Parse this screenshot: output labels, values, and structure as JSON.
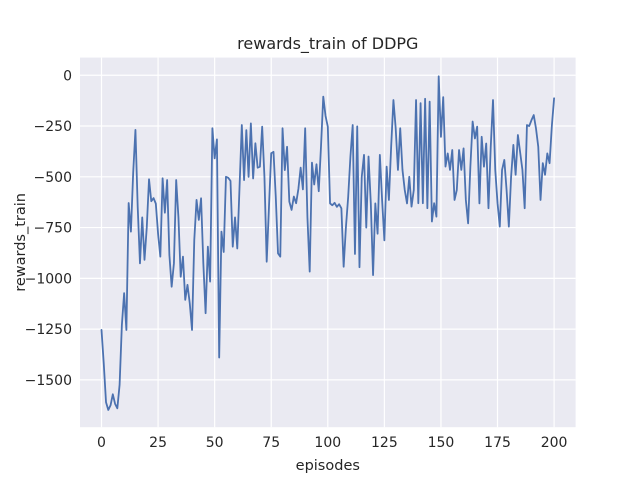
{
  "figure": {
    "kind": "matplotlib-seaborn line plot",
    "background_color": "#ffffff"
  },
  "chart_data": {
    "type": "line",
    "title": "rewards_train of DDPG",
    "xlabel": "episodes",
    "ylabel": "rewards_train",
    "legend": null,
    "grid": true,
    "plot_bg_color": "#eaeaf2",
    "grid_color": "#ffffff",
    "line_color": "#4c72b0",
    "text_color": "#262626",
    "x_ticks": [
      0,
      25,
      50,
      75,
      100,
      125,
      150,
      175,
      200
    ],
    "y_ticks": [
      0,
      -250,
      -500,
      -750,
      -1000,
      -1250,
      -1500
    ],
    "xlim": [
      -9.5,
      209.5
    ],
    "ylim": [
      -1733,
      87
    ],
    "x": [
      0,
      1,
      2,
      3,
      4,
      5,
      6,
      7,
      8,
      9,
      10,
      11,
      12,
      13,
      14,
      15,
      16,
      17,
      18,
      19,
      20,
      21,
      22,
      23,
      24,
      25,
      26,
      27,
      28,
      29,
      30,
      31,
      32,
      33,
      34,
      35,
      36,
      37,
      38,
      39,
      40,
      41,
      42,
      43,
      44,
      45,
      46,
      47,
      48,
      49,
      50,
      51,
      52,
      53,
      54,
      55,
      56,
      57,
      58,
      59,
      60,
      61,
      62,
      63,
      64,
      65,
      66,
      67,
      68,
      69,
      70,
      71,
      72,
      73,
      74,
      75,
      76,
      77,
      78,
      79,
      80,
      81,
      82,
      83,
      84,
      85,
      86,
      87,
      88,
      89,
      90,
      91,
      92,
      93,
      94,
      95,
      96,
      97,
      98,
      99,
      100,
      101,
      102,
      103,
      104,
      105,
      106,
      107,
      108,
      109,
      110,
      111,
      112,
      113,
      114,
      115,
      116,
      117,
      118,
      119,
      120,
      121,
      122,
      123,
      124,
      125,
      126,
      127,
      128,
      129,
      130,
      131,
      132,
      133,
      134,
      135,
      136,
      137,
      138,
      139,
      140,
      141,
      142,
      143,
      144,
      145,
      146,
      147,
      148,
      149,
      150,
      151,
      152,
      153,
      154,
      155,
      156,
      157,
      158,
      159,
      160,
      161,
      162,
      163,
      164,
      165,
      166,
      167,
      168,
      169,
      170,
      171,
      172,
      173,
      174,
      175,
      176,
      177,
      178,
      179,
      180,
      181,
      182,
      183,
      184,
      185,
      186,
      187,
      188,
      189,
      190,
      191,
      192,
      193,
      194,
      195,
      196,
      197,
      198,
      199,
      200
    ],
    "values": [
      -1254,
      -1420,
      -1610,
      -1648,
      -1625,
      -1571,
      -1618,
      -1640,
      -1524,
      -1230,
      -1073,
      -1254,
      -629,
      -770,
      -480,
      -269,
      -650,
      -926,
      -700,
      -909,
      -750,
      -512,
      -620,
      -605,
      -632,
      -780,
      -893,
      -507,
      -677,
      -516,
      -885,
      -1041,
      -926,
      -516,
      -700,
      -992,
      -893,
      -1106,
      -1032,
      -1123,
      -1254,
      -811,
      -614,
      -712,
      -606,
      -926,
      -1172,
      -844,
      -1016,
      -261,
      -409,
      -316,
      -1390,
      -770,
      -870,
      -500,
      -505,
      -520,
      -844,
      -700,
      -853,
      -550,
      -245,
      -516,
      -270,
      -500,
      -237,
      -508,
      -335,
      -455,
      -450,
      -253,
      -500,
      -918,
      -650,
      -384,
      -377,
      -597,
      -877,
      -893,
      -261,
      -467,
      -352,
      -622,
      -663,
      -597,
      -630,
      -560,
      -455,
      -562,
      -261,
      -700,
      -967,
      -430,
      -538,
      -438,
      -571,
      -350,
      -105,
      -200,
      -253,
      -631,
      -640,
      -628,
      -648,
      -635,
      -655,
      -943,
      -750,
      -600,
      -400,
      -245,
      -880,
      -252,
      -945,
      -500,
      -392,
      -750,
      -400,
      -630,
      -984,
      -631,
      -780,
      -392,
      -615,
      -813,
      -450,
      -614,
      -351,
      -122,
      -261,
      -466,
      -261,
      -466,
      -565,
      -631,
      -500,
      -647,
      -565,
      -122,
      -630,
      -137,
      -630,
      -116,
      -655,
      -130,
      -720,
      -630,
      -696,
      -5,
      -303,
      -108,
      -450,
      -385,
      -466,
      -368,
      -614,
      -565,
      -368,
      -466,
      -360,
      -614,
      -729,
      -450,
      -228,
      -311,
      -253,
      -631,
      -303,
      -450,
      -336,
      -655,
      -352,
      -122,
      -466,
      -630,
      -745,
      -466,
      -417,
      -565,
      -745,
      -500,
      -343,
      -490,
      -294,
      -380,
      -466,
      -655,
      -245,
      -250,
      -221,
      -196,
      -262,
      -352,
      -614,
      -433,
      -490,
      -385,
      -433,
      -250,
      -113
    ]
  }
}
